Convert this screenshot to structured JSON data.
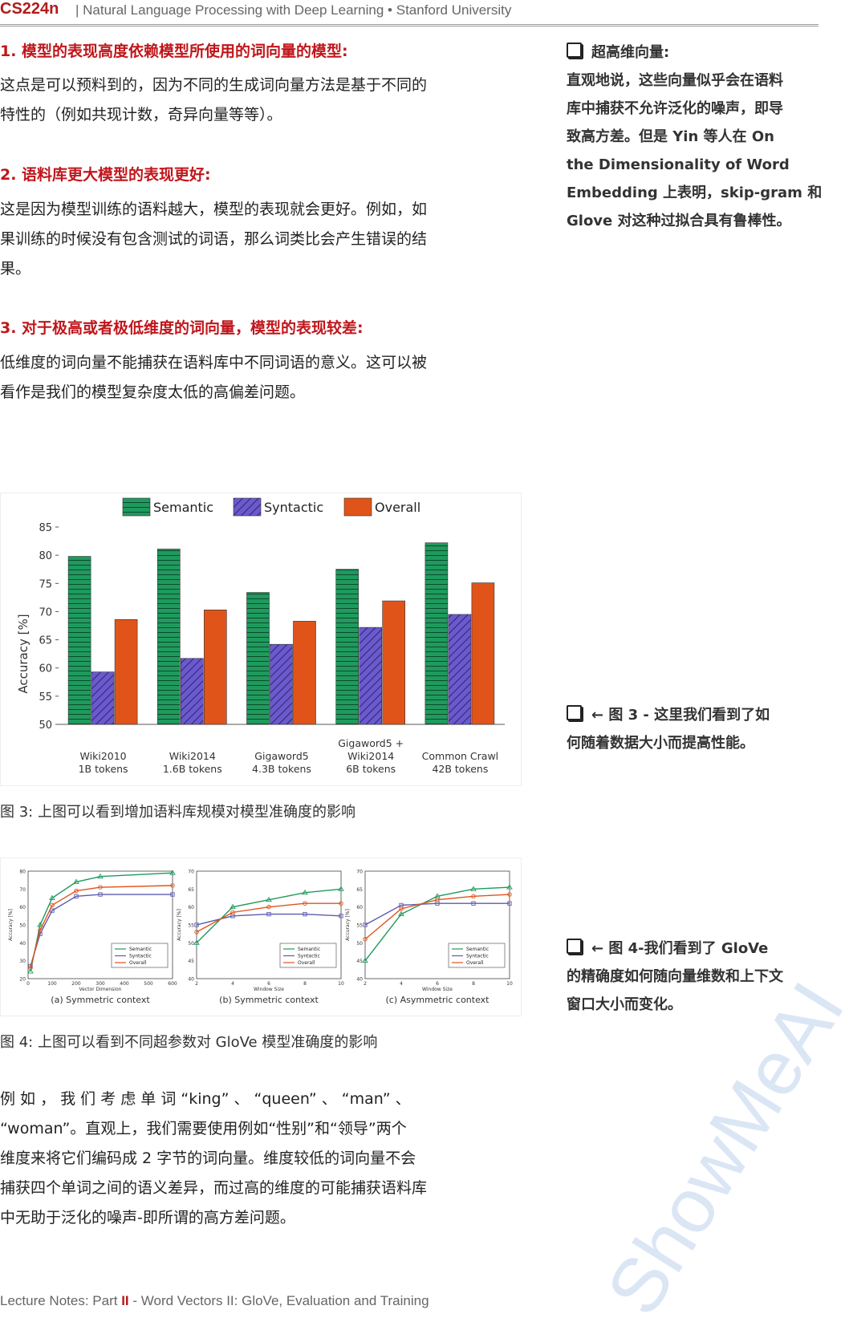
{
  "header": {
    "course": "CS224n",
    "subtitle": "| Natural Language Processing with Deep Learning • Stanford University"
  },
  "sections": [
    {
      "heading": "1.  模型的表现高度依赖模型所使用的词向量的模型:",
      "lines": [
        "这点是可以预料到的，因为不同的生成词向量方法是基于不同的",
        "特性的（例如共现计数，奇异向量等等）。"
      ]
    },
    {
      "heading": "2.  语料库更大模型的表现更好:",
      "lines": [
        "这是因为模型训练的语料越大，模型的表现就会更好。例如，如",
        "果训练的时候没有包含测试的词语，那么词类比会产生错误的结",
        "果。"
      ]
    },
    {
      "heading": "3.  对于极高或者极低维度的词向量，模型的表现较差:",
      "lines": [
        "低维度的词向量不能捕获在语料库中不同词语的意义。这可以被",
        "看作是我们的模型复杂度太低的高偏差问题。"
      ]
    }
  ],
  "side_notes": [
    {
      "lines": [
        "超高维向量:",
        "直观地说，这些向量似乎会在语料",
        "库中捕获不允许泛化的噪声，即导",
        "致高方差。但是 Yin 等人在 On",
        "the Dimensionality of Word",
        "Embedding 上表明，skip-gram 和",
        "Glove 对这种过拟合具有鲁棒性。"
      ]
    },
    {
      "lines": [
        "← 图 3 - 这里我们看到了如",
        "何随着数据大小而提高性能。"
      ]
    },
    {
      "lines": [
        "← 图 4-我们看到了 GloVe",
        "的精确度如何随向量维数和上下文",
        "窗口大小而变化。"
      ]
    }
  ],
  "figure3": {
    "caption": "图 3: 上图可以看到增加语料库规模对模型准确度的影响",
    "chart_data": {
      "type": "bar",
      "ylabel": "Accuracy [%]",
      "ylim": [
        50,
        85
      ],
      "yticks": [
        50,
        55,
        60,
        65,
        70,
        75,
        80,
        85
      ],
      "categories": [
        [
          "Wiki2010",
          "1B tokens"
        ],
        [
          "Wiki2014",
          "1.6B tokens"
        ],
        [
          "Gigaword5",
          "4.3B tokens"
        ],
        [
          "Gigaword5 +",
          "Wiki2014",
          "6B tokens"
        ],
        [
          "Common Crawl",
          "42B tokens"
        ]
      ],
      "series": [
        {
          "name": "Semantic",
          "color": "#1f9a5e",
          "values": [
            79.8,
            81.1,
            73.4,
            77.5,
            82.2
          ]
        },
        {
          "name": "Syntactic",
          "color": "#6a5acd",
          "values": [
            59.3,
            61.7,
            64.2,
            67.2,
            69.5
          ]
        },
        {
          "name": "Overall",
          "color": "#e0541a",
          "values": [
            68.6,
            70.3,
            68.3,
            71.9,
            75.1
          ]
        }
      ],
      "legend": "top"
    }
  },
  "figure4": {
    "caption": "图 4: 上图可以看到不同超参数对 GloVe 模型准确度的影响",
    "chart_data": [
      {
        "type": "line",
        "subtitle": "(a) Symmetric context",
        "xlabel": "Vector Dimension",
        "ylabel": "Accuracy [%]",
        "xlim": [
          0,
          600
        ],
        "ylim": [
          20,
          80
        ],
        "xticks": [
          0,
          100,
          200,
          300,
          400,
          500,
          600
        ],
        "yticks": [
          20,
          30,
          40,
          50,
          60,
          70,
          80
        ],
        "x": [
          10,
          50,
          100,
          200,
          300,
          600
        ],
        "series": [
          {
            "name": "Semantic",
            "values": [
              24,
              50,
              65,
              74,
              77,
              79
            ]
          },
          {
            "name": "Syntactic",
            "values": [
              27,
              45,
              58,
              66,
              67,
              67
            ]
          },
          {
            "name": "Overall",
            "values": [
              26,
              47,
              61,
              69,
              71,
              72
            ]
          }
        ]
      },
      {
        "type": "line",
        "subtitle": "(b) Symmetric context",
        "xlabel": "Window Size",
        "ylabel": "Accuracy [%]",
        "xlim": [
          2,
          10
        ],
        "ylim": [
          40,
          70
        ],
        "xticks": [
          2,
          4,
          6,
          8,
          10
        ],
        "yticks": [
          40,
          45,
          50,
          55,
          60,
          65,
          70
        ],
        "x": [
          2,
          4,
          6,
          8,
          10
        ],
        "series": [
          {
            "name": "Semantic",
            "values": [
              50,
              60,
              62,
              64,
              65
            ]
          },
          {
            "name": "Syntactic",
            "values": [
              55,
              57.5,
              58,
              58,
              57.5
            ]
          },
          {
            "name": "Overall",
            "values": [
              53,
              58.5,
              60,
              61,
              61
            ]
          }
        ]
      },
      {
        "type": "line",
        "subtitle": "(c) Asymmetric context",
        "xlabel": "Window Size",
        "ylabel": "Accuracy [%]",
        "xlim": [
          2,
          10
        ],
        "ylim": [
          40,
          70
        ],
        "xticks": [
          2,
          4,
          6,
          8,
          10
        ],
        "yticks": [
          40,
          45,
          50,
          55,
          60,
          65,
          70
        ],
        "x": [
          2,
          4,
          6,
          8,
          10
        ],
        "series": [
          {
            "name": "Semantic",
            "values": [
              45,
              58,
              63,
              65,
              65.5
            ]
          },
          {
            "name": "Syntactic",
            "values": [
              55,
              60.5,
              61,
              61,
              61
            ]
          },
          {
            "name": "Overall",
            "values": [
              51,
              59.5,
              62,
              63,
              63.5
            ]
          }
        ]
      }
    ],
    "line_colors": {
      "Semantic": "#1f9a5e",
      "Syntactic": "#5b5bb0",
      "Overall": "#e0541a"
    }
  },
  "paragraph4": {
    "lines": [
      "例 如 ， 我 们 考 虑 单 词 “king” 、 “queen” 、 “man” 、",
      "“woman”。直观上，我们需要使用例如“性别”和“领导”两个",
      "维度来将它们编码成 2 字节的词向量。维度较低的词向量不会",
      "捕获四个单词之间的语义差异，而过高的维度的可能捕获语料库",
      "中无助于泛化的噪声-即所谓的高方差问题。"
    ]
  },
  "footer": {
    "prefix": "Lecture Notes: Part ",
    "part": "II",
    "suffix": " - Word Vectors II: GloVe, Evaluation and Training"
  },
  "watermark": "ShowMeAI"
}
